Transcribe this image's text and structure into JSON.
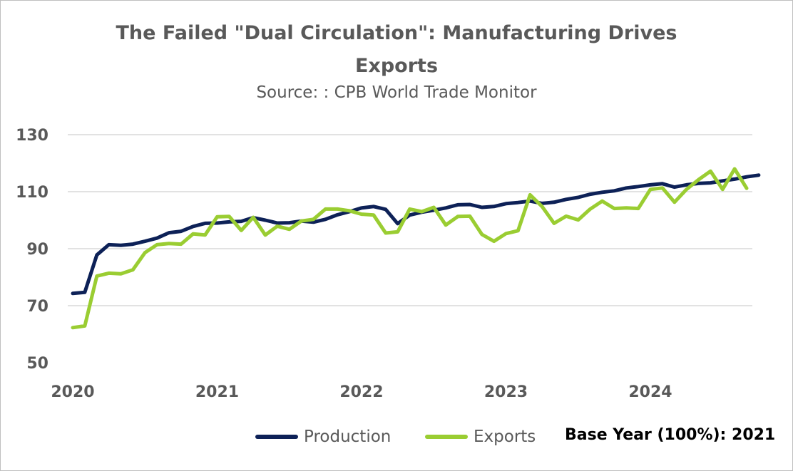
{
  "chart_data": {
    "type": "line",
    "title_line1": "The Failed \"Dual Circulation\": Manufacturing Drives",
    "title_line2": "Exports",
    "subtitle": "Source: : CPB World Trade Monitor",
    "note": "Base Year (100%): 2021",
    "ylim": [
      50,
      130
    ],
    "yticks": [
      50,
      70,
      90,
      110,
      130
    ],
    "xlim": [
      2020,
      2024.75
    ],
    "xticks": [
      2020,
      2021,
      2022,
      2023,
      2024
    ],
    "grid": true,
    "legend_position": "bottom",
    "x_months": "Monthly from Jan 2020 to Oct 2024",
    "series": [
      {
        "name": "Production",
        "color": "#0d2157",
        "values": [
          74.3,
          74.7,
          87.8,
          91.4,
          91.2,
          91.6,
          92.6,
          93.7,
          95.6,
          96.1,
          97.8,
          98.9,
          99.0,
          99.4,
          99.6,
          100.9,
          100.0,
          99.0,
          99.1,
          99.7,
          99.3,
          100.3,
          101.9,
          103.0,
          104.3,
          104.8,
          103.8,
          98.8,
          101.8,
          102.8,
          103.5,
          104.3,
          105.4,
          105.5,
          104.5,
          104.8,
          105.8,
          106.2,
          106.7,
          105.9,
          106.3,
          107.3,
          108.0,
          109.1,
          109.8,
          110.3,
          111.3,
          111.8,
          112.4,
          112.8,
          111.6,
          112.4,
          112.9,
          113.1,
          113.8,
          114.4,
          115.2,
          115.8
        ]
      },
      {
        "name": "Exports",
        "color": "#9acd32",
        "values": [
          62.3,
          62.9,
          80.4,
          81.4,
          81.2,
          82.6,
          88.6,
          91.4,
          91.8,
          91.6,
          95.2,
          94.8,
          101.2,
          101.3,
          96.4,
          101.0,
          94.8,
          97.9,
          96.8,
          99.7,
          100.3,
          103.9,
          103.9,
          103.3,
          102.1,
          101.8,
          95.5,
          95.9,
          103.9,
          103.0,
          104.5,
          98.3,
          101.3,
          101.4,
          95.0,
          92.6,
          95.3,
          96.3,
          108.9,
          104.8,
          98.9,
          101.4,
          100.1,
          103.9,
          106.7,
          104.1,
          104.3,
          104.1,
          110.8,
          111.3,
          106.3,
          110.8,
          114.2,
          117.2,
          110.8,
          118.0,
          111.2
        ]
      }
    ]
  }
}
